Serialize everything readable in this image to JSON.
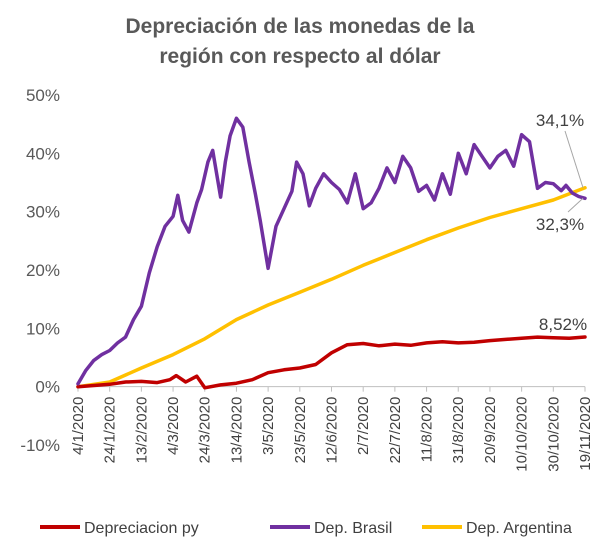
{
  "chart_data": {
    "type": "line",
    "title_lines": [
      "Depreciación de las monedas de la",
      "región con respecto al dólar"
    ],
    "xlabel": "",
    "ylabel": "",
    "ylim": [
      -10,
      50
    ],
    "y_ticks": [
      50,
      40,
      30,
      20,
      10,
      0,
      -10
    ],
    "y_tick_labels": [
      "50%",
      "40%",
      "30%",
      "20%",
      "10%",
      "0%",
      "-10%"
    ],
    "x_tick_labels": [
      "4/1/2020",
      "24/1/2020",
      "13/2/2020",
      "4/3/2020",
      "24/3/2020",
      "13/4/2020",
      "3/5/2020",
      "23/5/2020",
      "12/6/2020",
      "2/7/2020",
      "22/7/2020",
      "11/8/2020",
      "31/8/2020",
      "20/9/2020",
      "10/10/2020",
      "30/10/2020",
      "19/11/2020"
    ],
    "x_range": [
      0,
      320
    ],
    "gridlines": false,
    "legend_position": "bottom",
    "series": [
      {
        "name": "Depreciacion py",
        "color": "#C00000",
        "x": [
          0,
          10,
          20,
          30,
          40,
          50,
          58,
          62,
          68,
          75,
          80,
          90,
          100,
          110,
          120,
          130,
          140,
          150,
          160,
          170,
          180,
          190,
          200,
          210,
          220,
          230,
          240,
          250,
          260,
          270,
          280,
          290,
          300,
          310,
          320
        ],
        "values": [
          0,
          0.2,
          0.4,
          0.8,
          0.9,
          0.7,
          1.2,
          1.9,
          0.8,
          1.8,
          -0.2,
          0.3,
          0.6,
          1.2,
          2.4,
          2.9,
          3.2,
          3.8,
          5.8,
          7.2,
          7.4,
          7.0,
          7.3,
          7.1,
          7.5,
          7.7,
          7.5,
          7.6,
          7.9,
          8.1,
          8.3,
          8.5,
          8.4,
          8.3,
          8.52
        ]
      },
      {
        "name": "Dep. Brasil",
        "color": "#7030A0",
        "x": [
          0,
          5,
          10,
          15,
          20,
          25,
          30,
          35,
          40,
          45,
          50,
          55,
          60,
          63,
          66,
          70,
          75,
          78,
          82,
          85,
          90,
          93,
          96,
          100,
          104,
          108,
          112,
          115,
          120,
          125,
          130,
          135,
          138,
          142,
          146,
          150,
          155,
          160,
          165,
          170,
          175,
          180,
          185,
          190,
          195,
          200,
          205,
          210,
          215,
          220,
          225,
          230,
          235,
          240,
          245,
          250,
          255,
          260,
          265,
          270,
          275,
          280,
          285,
          290,
          295,
          300,
          305,
          308,
          312,
          316,
          320
        ],
        "values": [
          0.5,
          2.8,
          4.5,
          5.5,
          6.2,
          7.5,
          8.5,
          11.5,
          13.8,
          19.5,
          24.0,
          27.5,
          29.2,
          32.8,
          28.5,
          26.5,
          31.5,
          33.8,
          38.5,
          40.5,
          32.5,
          38.5,
          43.0,
          46.0,
          44.5,
          38.5,
          33.0,
          28.5,
          20.3,
          27.5,
          30.5,
          33.5,
          38.5,
          36.5,
          31.0,
          34.0,
          36.5,
          35.0,
          33.8,
          31.5,
          36.5,
          30.5,
          31.5,
          34.0,
          37.5,
          35.0,
          39.5,
          37.5,
          33.5,
          34.5,
          32.0,
          36.5,
          33.0,
          40.0,
          36.5,
          41.5,
          39.5,
          37.5,
          39.5,
          40.5,
          37.8,
          43.2,
          42.0,
          34.0,
          35.0,
          34.8,
          33.6,
          34.5,
          33.2,
          32.6,
          32.3
        ]
      },
      {
        "name": "Dep. Argentina",
        "color": "#FFC000",
        "x": [
          0,
          20,
          40,
          60,
          80,
          100,
          120,
          140,
          160,
          180,
          200,
          220,
          240,
          260,
          280,
          300,
          320
        ],
        "values": [
          0.0,
          0.8,
          3.2,
          5.5,
          8.2,
          11.5,
          14.0,
          16.2,
          18.4,
          20.8,
          23.0,
          25.2,
          27.2,
          29.0,
          30.5,
          32.0,
          34.1
        ]
      }
    ],
    "annotations": [
      {
        "text": "34,1%",
        "series": "Dep. Argentina"
      },
      {
        "text": "32,3%",
        "series": "Dep. Brasil"
      },
      {
        "text": "8,52%",
        "series": "Depreciacion py"
      }
    ]
  }
}
